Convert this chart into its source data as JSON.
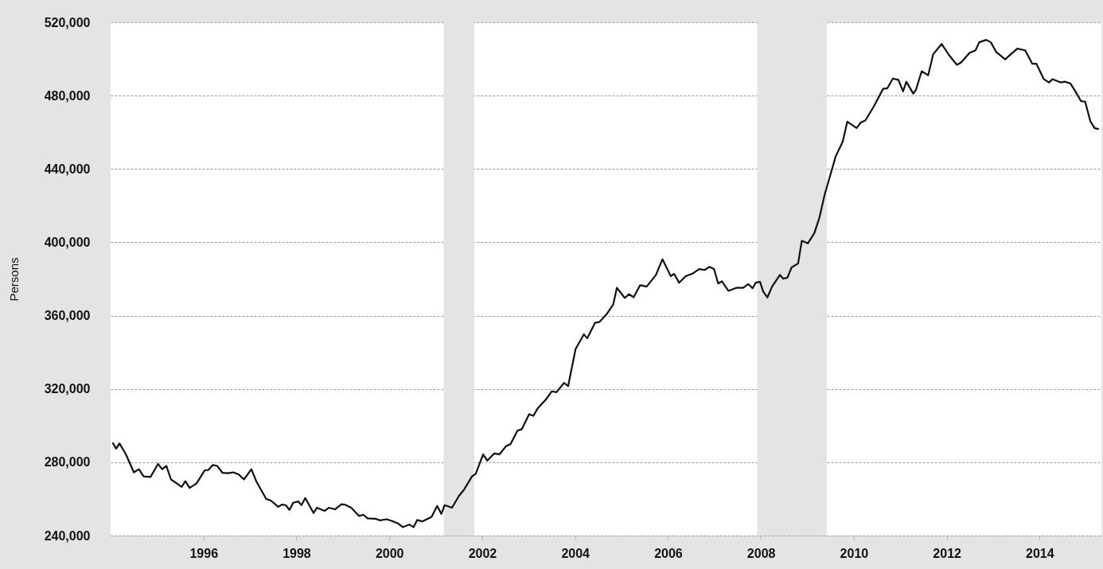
{
  "chart_data": {
    "type": "line",
    "ylabel": "Persons",
    "x": [
      1994.05,
      1994.12,
      1994.19,
      1994.33,
      1994.5,
      1994.61,
      1994.71,
      1994.86,
      1995.02,
      1995.11,
      1995.2,
      1995.3,
      1995.4,
      1995.53,
      1995.61,
      1995.7,
      1995.85,
      1996.03,
      1996.1,
      1996.2,
      1996.29,
      1996.41,
      1996.53,
      1996.64,
      1996.76,
      1996.87,
      1997.03,
      1997.14,
      1997.35,
      1997.45,
      1997.61,
      1997.69,
      1997.77,
      1997.85,
      1997.93,
      1998.04,
      1998.11,
      1998.19,
      1998.37,
      1998.44,
      1998.61,
      1998.7,
      1998.83,
      1998.97,
      1999.04,
      1999.18,
      1999.35,
      1999.44,
      1999.53,
      1999.7,
      1999.8,
      1999.94,
      2000.05,
      2000.19,
      2000.29,
      2000.43,
      2000.52,
      2000.6,
      2000.71,
      2000.91,
      2001.03,
      2001.12,
      2001.19,
      2001.35,
      2001.5,
      2001.61,
      2001.78,
      2001.86,
      2002.02,
      2002.11,
      2002.26,
      2002.37,
      2002.51,
      2002.61,
      2002.76,
      2002.85,
      2003.01,
      2003.1,
      2003.2,
      2003.36,
      2003.5,
      2003.6,
      2003.76,
      2003.85,
      2004.01,
      2004.19,
      2004.26,
      2004.43,
      2004.52,
      2004.68,
      2004.82,
      2004.9,
      2005.07,
      2005.16,
      2005.26,
      2005.4,
      2005.54,
      2005.74,
      2005.88,
      2006.06,
      2006.13,
      2006.24,
      2006.38,
      2006.52,
      2006.67,
      2006.79,
      2006.89,
      2006.99,
      2007.08,
      2007.16,
      2007.3,
      2007.48,
      2007.62,
      2007.73,
      2007.82,
      2007.89,
      2007.98,
      2008.05,
      2008.14,
      2008.24,
      2008.41,
      2008.48,
      2008.57,
      2008.66,
      2008.8,
      2008.88,
      2009.01,
      2009.15,
      2009.26,
      2009.37,
      2009.47,
      2009.61,
      2009.76,
      2009.86,
      2010.06,
      2010.15,
      2010.25,
      2010.43,
      2010.63,
      2010.72,
      2010.84,
      2010.96,
      2011.06,
      2011.13,
      2011.28,
      2011.34,
      2011.46,
      2011.6,
      2011.71,
      2011.89,
      2012.05,
      2012.22,
      2012.31,
      2012.49,
      2012.62,
      2012.7,
      2012.85,
      2012.95,
      2013.06,
      2013.26,
      2013.38,
      2013.52,
      2013.69,
      2013.84,
      2013.93,
      2014.09,
      2014.2,
      2014.28,
      2014.45,
      2014.54,
      2014.66,
      2014.77,
      2014.89,
      2014.98,
      2015.09,
      2015.18,
      2015.26
    ],
    "series": [
      {
        "color": "#111111",
        "values": [
          290400,
          287400,
          290300,
          284300,
          274500,
          276200,
          272300,
          272000,
          279100,
          276200,
          278000,
          270600,
          268900,
          266500,
          269700,
          266000,
          268500,
          275700,
          275700,
          278500,
          278100,
          274200,
          274000,
          274500,
          273300,
          270600,
          276200,
          269400,
          260000,
          259100,
          255700,
          256900,
          256600,
          254000,
          257900,
          258600,
          256600,
          260500,
          252300,
          255200,
          253500,
          255200,
          254300,
          257100,
          256900,
          255200,
          250600,
          251400,
          249400,
          249200,
          248300,
          248900,
          248000,
          246600,
          244600,
          246000,
          244600,
          248500,
          247700,
          250200,
          256200,
          251800,
          256600,
          255200,
          261700,
          265100,
          272300,
          273700,
          284300,
          280900,
          284800,
          284300,
          288700,
          289900,
          297300,
          298000,
          306200,
          305300,
          309600,
          313900,
          318700,
          318200,
          323300,
          321600,
          341800,
          349800,
          347600,
          356100,
          356500,
          360800,
          366100,
          375200,
          369600,
          371700,
          370000,
          376600,
          375800,
          382200,
          390700,
          381500,
          382800,
          377900,
          381500,
          382800,
          385400,
          384900,
          386600,
          385400,
          377500,
          378700,
          373500,
          375200,
          375200,
          377200,
          374900,
          378000,
          378400,
          373100,
          369900,
          375800,
          382200,
          380100,
          380700,
          386300,
          388400,
          400800,
          399400,
          405000,
          413500,
          425800,
          434600,
          446900,
          454800,
          465800,
          462300,
          465300,
          466500,
          474100,
          483700,
          484000,
          489300,
          488600,
          482300,
          487600,
          481100,
          483300,
          493300,
          491100,
          502600,
          508200,
          502100,
          496800,
          498100,
          503300,
          504700,
          509100,
          510400,
          509100,
          503900,
          499800,
          502600,
          505600,
          504700,
          497400,
          497400,
          489000,
          487200,
          489000,
          487200,
          487600,
          486700,
          482300,
          477000,
          476700,
          466200,
          462300,
          461800
        ]
      }
    ],
    "xlim": [
      1994,
      2015.33
    ],
    "ylim": [
      240000,
      520000
    ],
    "xticks": [
      1996,
      1998,
      2000,
      2002,
      2004,
      2006,
      2008,
      2010,
      2012,
      2014
    ],
    "yticks": [
      {
        "value": 240000,
        "label": "240,000"
      },
      {
        "value": 280000,
        "label": "280,000"
      },
      {
        "value": 320000,
        "label": "320,000"
      },
      {
        "value": 360000,
        "label": "360,000"
      },
      {
        "value": 400000,
        "label": "400,000"
      },
      {
        "value": 440000,
        "label": "440,000"
      },
      {
        "value": 480000,
        "label": "480,000"
      },
      {
        "value": 520000,
        "label": "520,000"
      }
    ],
    "bands": [
      {
        "axis": "x",
        "from": 2001.17,
        "to": 2001.83,
        "color": "#e4e4e4"
      },
      {
        "axis": "x",
        "from": 2007.92,
        "to": 2009.42,
        "color": "#e4e4e4"
      }
    ],
    "grid": "y",
    "line_style": "solid",
    "marker": "none"
  }
}
